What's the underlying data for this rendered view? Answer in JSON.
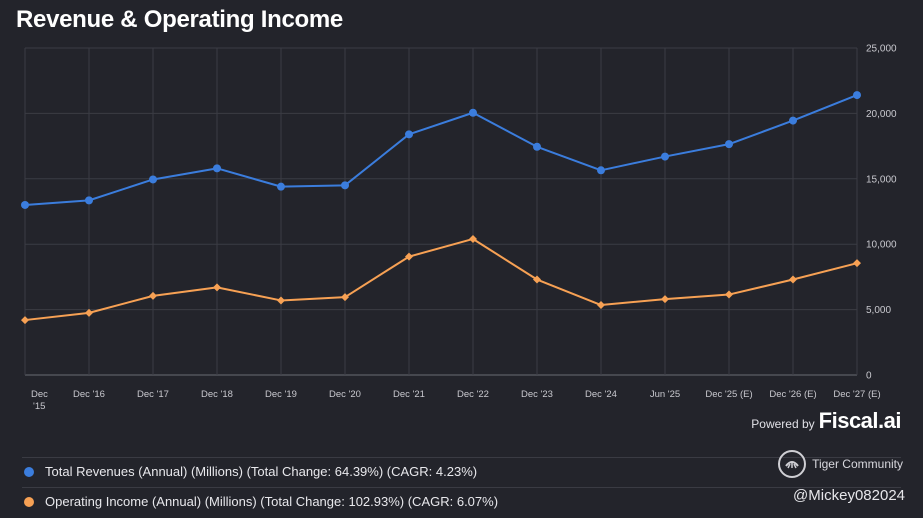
{
  "title": "Revenue & Operating Income",
  "chart_data": {
    "type": "line",
    "title": "Revenue & Operating Income",
    "categories": [
      "Dec '15",
      "Dec '16",
      "Dec '17",
      "Dec '18",
      "Dec '19",
      "Dec '20",
      "Dec '21",
      "Dec '22",
      "Dec '23",
      "Dec '24",
      "Jun '25",
      "Dec '25 (E)",
      "Dec '26 (E)",
      "Dec '27 (E)"
    ],
    "series": [
      {
        "name": "Total Revenues (Annual) (Millions) (Total Change: 64.39%) (CAGR: 4.23%)",
        "color": "#3b7ddd",
        "marker": "circle",
        "values": [
          13000,
          13350,
          14950,
          15800,
          14400,
          14500,
          18400,
          20050,
          17450,
          15650,
          16700,
          17650,
          19450,
          21400
        ]
      },
      {
        "name": "Operating Income (Annual) (Millions) (Total Change: 102.93%) (CAGR: 6.07%)",
        "color": "#f7a154",
        "marker": "diamond",
        "values": [
          4200,
          4750,
          6050,
          6700,
          5700,
          5950,
          9050,
          10400,
          7300,
          5350,
          5800,
          6150,
          7300,
          8550
        ]
      }
    ],
    "y_ticks": [
      "0",
      "5,000",
      "10,000",
      "15,000",
      "20,000",
      "25,000"
    ],
    "ylim": [
      0,
      25000
    ],
    "y_axis_side": "right",
    "grid": true
  },
  "attribution": {
    "powered_by": "Powered by",
    "brand": "Fiscal.ai"
  },
  "watermark": {
    "community": "Tiger Community",
    "handle": "@Mickey082024"
  }
}
